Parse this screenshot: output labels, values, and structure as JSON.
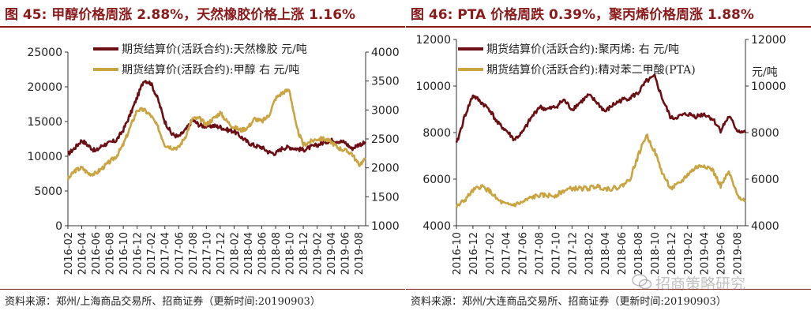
{
  "colors": {
    "title": "#8b1a1a",
    "series_dark": "#6b0f14",
    "series_gold": "#c9a441"
  },
  "watermark": {
    "text": "招商策略研究",
    "icon": "wechat-icon"
  },
  "panels": [
    {
      "title": "图 45:  甲醇价格周涨 2.88%，天然橡胶价格上涨 1.16%",
      "source": "资料来源：郑州/上海商品交易所、招商证券（更新时间:20190903）",
      "chart_data": {
        "type": "line",
        "title": "图 45:  甲醇价格周涨 2.88%，天然橡胶价格上涨 1.16%",
        "xlim": [
          "2016-02",
          "2019-09"
        ],
        "x_ticks": [
          "2016-02",
          "2016-04",
          "2016-06",
          "2016-08",
          "2016-10",
          "2016-12",
          "2017-02",
          "2017-04",
          "2017-06",
          "2017-08",
          "2017-10",
          "2017-12",
          "2018-02",
          "2018-04",
          "2018-06",
          "2018-08",
          "2018-10",
          "2018-12",
          "2019-02",
          "2019-04",
          "2019-06",
          "2019-08"
        ],
        "y_left": {
          "min": 0,
          "max": 25000,
          "ticks": [
            0,
            5000,
            10000,
            15000,
            20000,
            25000
          ]
        },
        "y_right": {
          "min": 1000,
          "max": 4000,
          "ticks": [
            1000,
            1500,
            2000,
            2500,
            3000,
            3500,
            4000
          ]
        },
        "legend": "top",
        "series": [
          {
            "name": "期货结算价(活跃合约):天然橡胶  元/吨",
            "axis": "left",
            "points": [
              [
                "2016-02",
                10300
              ],
              [
                "2016-03",
                11200
              ],
              [
                "2016-04",
                12300
              ],
              [
                "2016-05",
                11500
              ],
              [
                "2016-06",
                10700
              ],
              [
                "2016-07",
                11600
              ],
              [
                "2016-08",
                11900
              ],
              [
                "2016-09",
                12300
              ],
              [
                "2016-10",
                13800
              ],
              [
                "2016-11",
                16000
              ],
              [
                "2016-12",
                18500
              ],
              [
                "2017-01",
                21000
              ],
              [
                "2017-02",
                20500
              ],
              [
                "2017-03",
                18200
              ],
              [
                "2017-04",
                15000
              ],
              [
                "2017-05",
                13200
              ],
              [
                "2017-06",
                12800
              ],
              [
                "2017-07",
                13800
              ],
              [
                "2017-08",
                15200
              ],
              [
                "2017-09",
                14500
              ],
              [
                "2017-10",
                14300
              ],
              [
                "2017-11",
                14400
              ],
              [
                "2017-12",
                14200
              ],
              [
                "2018-01",
                13800
              ],
              [
                "2018-02",
                13600
              ],
              [
                "2018-03",
                12800
              ],
              [
                "2018-04",
                12000
              ],
              [
                "2018-05",
                11500
              ],
              [
                "2018-06",
                11300
              ],
              [
                "2018-07",
                10600
              ],
              [
                "2018-08",
                10400
              ],
              [
                "2018-09",
                11200
              ],
              [
                "2018-10",
                11300
              ],
              [
                "2018-11",
                11100
              ],
              [
                "2018-12",
                10900
              ],
              [
                "2019-01",
                11300
              ],
              [
                "2019-02",
                11600
              ],
              [
                "2019-03",
                12000
              ],
              [
                "2019-04",
                12300
              ],
              [
                "2019-05",
                12200
              ],
              [
                "2019-06",
                12000
              ],
              [
                "2019-07",
                11100
              ],
              [
                "2019-08",
                11700
              ],
              [
                "2019-09",
                11900
              ]
            ]
          },
          {
            "name": "期货结算价(活跃合约):甲醇  右  元/吨",
            "axis": "right",
            "points": [
              [
                "2016-02",
                1800
              ],
              [
                "2016-03",
                1950
              ],
              [
                "2016-04",
                2000
              ],
              [
                "2016-05",
                1900
              ],
              [
                "2016-06",
                1900
              ],
              [
                "2016-07",
                2000
              ],
              [
                "2016-08",
                2100
              ],
              [
                "2016-09",
                2200
              ],
              [
                "2016-10",
                2400
              ],
              [
                "2016-11",
                2700
              ],
              [
                "2016-12",
                3000
              ],
              [
                "2017-01",
                3000
              ],
              [
                "2017-02",
                2900
              ],
              [
                "2017-03",
                2700
              ],
              [
                "2017-04",
                2400
              ],
              [
                "2017-05",
                2350
              ],
              [
                "2017-06",
                2350
              ],
              [
                "2017-07",
                2550
              ],
              [
                "2017-08",
                2850
              ],
              [
                "2017-09",
                2850
              ],
              [
                "2017-10",
                2750
              ],
              [
                "2017-11",
                2850
              ],
              [
                "2017-12",
                2950
              ],
              [
                "2018-01",
                2800
              ],
              [
                "2018-02",
                2700
              ],
              [
                "2018-03",
                2650
              ],
              [
                "2018-04",
                2700
              ],
              [
                "2018-05",
                2850
              ],
              [
                "2018-06",
                2800
              ],
              [
                "2018-07",
                2900
              ],
              [
                "2018-08",
                3200
              ],
              [
                "2018-09",
                3300
              ],
              [
                "2018-10",
                3350
              ],
              [
                "2018-11",
                2700
              ],
              [
                "2018-12",
                2400
              ],
              [
                "2019-01",
                2450
              ],
              [
                "2019-02",
                2500
              ],
              [
                "2019-03",
                2500
              ],
              [
                "2019-04",
                2450
              ],
              [
                "2019-05",
                2350
              ],
              [
                "2019-06",
                2300
              ],
              [
                "2019-07",
                2250
              ],
              [
                "2019-08",
                2050
              ],
              [
                "2019-09",
                2150
              ]
            ]
          }
        ]
      }
    },
    {
      "title": "图 46:  PTA 价格周跌 0.39%，聚丙烯价格周涨 1.88%",
      "source": "资料来源：郑州/大连商品交易所、招商证券（更新时间:20190903）",
      "chart_data": {
        "type": "line",
        "title": "图 46:  PTA 价格周跌 0.39%，聚丙烯价格周涨 1.88%",
        "xlim": [
          "2016-10",
          "2019-09"
        ],
        "x_ticks": [
          "2016-10",
          "2016-12",
          "2017-02",
          "2017-04",
          "2017-06",
          "2017-08",
          "2017-10",
          "2017-12",
          "2018-02",
          "2018-04",
          "2018-06",
          "2018-08",
          "2018-10",
          "2018-12",
          "2019-02",
          "2019-04",
          "2019-06",
          "2019-08"
        ],
        "y_left": {
          "min": 4000,
          "max": 12000,
          "ticks": [
            4000,
            6000,
            8000,
            10000,
            12000
          ]
        },
        "y_right": {
          "min": 4000,
          "max": 12000,
          "ticks": [
            4000,
            6000,
            8000,
            10000,
            12000
          ],
          "unit": "元/吨"
        },
        "legend": "top",
        "series": [
          {
            "name": "期货结算价(活跃合约):聚丙烯:  右  元/吨",
            "axis": "right",
            "points": [
              [
                "2016-10",
                7500
              ],
              [
                "2016-11",
                8700
              ],
              [
                "2016-12",
                9600
              ],
              [
                "2017-01",
                9300
              ],
              [
                "2017-02",
                9000
              ],
              [
                "2017-03",
                8400
              ],
              [
                "2017-04",
                8100
              ],
              [
                "2017-05",
                7700
              ],
              [
                "2017-06",
                8000
              ],
              [
                "2017-07",
                8600
              ],
              [
                "2017-08",
                9100
              ],
              [
                "2017-09",
                9000
              ],
              [
                "2017-10",
                9100
              ],
              [
                "2017-11",
                9400
              ],
              [
                "2017-12",
                9000
              ],
              [
                "2018-01",
                9300
              ],
              [
                "2018-02",
                9600
              ],
              [
                "2018-03",
                9300
              ],
              [
                "2018-04",
                8900
              ],
              [
                "2018-05",
                9200
              ],
              [
                "2018-06",
                9400
              ],
              [
                "2018-07",
                9500
              ],
              [
                "2018-08",
                9700
              ],
              [
                "2018-09",
                10200
              ],
              [
                "2018-10",
                10400
              ],
              [
                "2018-11",
                9400
              ],
              [
                "2018-12",
                8600
              ],
              [
                "2019-01",
                8700
              ],
              [
                "2019-02",
                8800
              ],
              [
                "2019-03",
                8700
              ],
              [
                "2019-04",
                8800
              ],
              [
                "2019-05",
                8600
              ],
              [
                "2019-06",
                8100
              ],
              [
                "2019-07",
                8700
              ],
              [
                "2019-08",
                8100
              ],
              [
                "2019-09",
                8000
              ]
            ]
          },
          {
            "name": "期货结算价(活跃合约):精对苯二甲酸(PTA)",
            "axis": "left",
            "points": [
              [
                "2016-10",
                4800
              ],
              [
                "2016-11",
                5100
              ],
              [
                "2016-12",
                5500
              ],
              [
                "2017-01",
                5700
              ],
              [
                "2017-02",
                5500
              ],
              [
                "2017-03",
                5100
              ],
              [
                "2017-04",
                4900
              ],
              [
                "2017-05",
                4900
              ],
              [
                "2017-06",
                5000
              ],
              [
                "2017-07",
                5200
              ],
              [
                "2017-08",
                5300
              ],
              [
                "2017-09",
                5300
              ],
              [
                "2017-10",
                5300
              ],
              [
                "2017-11",
                5500
              ],
              [
                "2017-12",
                5600
              ],
              [
                "2018-01",
                5600
              ],
              [
                "2018-02",
                5600
              ],
              [
                "2018-03",
                5700
              ],
              [
                "2018-04",
                5600
              ],
              [
                "2018-05",
                5600
              ],
              [
                "2018-06",
                5700
              ],
              [
                "2018-07",
                6000
              ],
              [
                "2018-08",
                7000
              ],
              [
                "2018-09",
                7900
              ],
              [
                "2018-10",
                7200
              ],
              [
                "2018-11",
                6200
              ],
              [
                "2018-12",
                5600
              ],
              [
                "2019-01",
                5800
              ],
              [
                "2019-02",
                6200
              ],
              [
                "2019-03",
                6500
              ],
              [
                "2019-04",
                6600
              ],
              [
                "2019-05",
                6400
              ],
              [
                "2019-06",
                5700
              ],
              [
                "2019-07",
                6300
              ],
              [
                "2019-08",
                5300
              ],
              [
                "2019-09",
                5100
              ]
            ]
          }
        ]
      }
    }
  ]
}
